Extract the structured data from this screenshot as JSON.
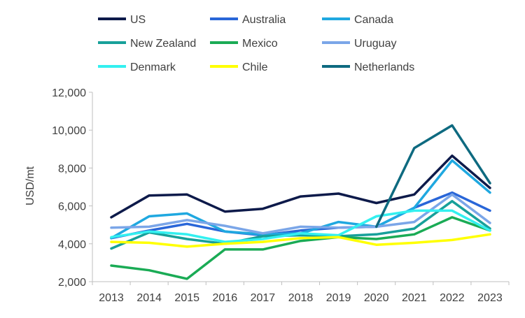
{
  "chart_data": {
    "type": "line",
    "title": "",
    "xlabel": "",
    "ylabel": "USD/mt",
    "ylim": [
      2000,
      12000
    ],
    "yticks": [
      2000,
      4000,
      6000,
      8000,
      10000,
      12000
    ],
    "ytick_labels": [
      "2,000",
      "4,000",
      "6,000",
      "8,000",
      "10,000",
      "12,000"
    ],
    "grid": false,
    "legend_placement": "top",
    "categories": [
      "2013",
      "2014",
      "2015",
      "2016",
      "2017",
      "2018",
      "2019",
      "2020",
      "2021",
      "2022",
      "2023"
    ],
    "series": [
      {
        "name": "US",
        "color": "#0d1a4a",
        "values": [
          5400,
          6550,
          6600,
          5700,
          5850,
          6500,
          6650,
          6150,
          6600,
          8650,
          6950
        ]
      },
      {
        "name": "Australia",
        "color": "#2966d8",
        "values": [
          4300,
          4700,
          5050,
          4650,
          4450,
          4700,
          4850,
          4900,
          5900,
          6700,
          5750
        ]
      },
      {
        "name": "Canada",
        "color": "#1fa8e0",
        "values": [
          4300,
          5450,
          5600,
          4650,
          4500,
          4550,
          5150,
          4900,
          5900,
          8400,
          6700
        ]
      },
      {
        "name": "New Zealand",
        "color": "#17a09a",
        "values": [
          3750,
          4600,
          4250,
          4000,
          4400,
          4450,
          4400,
          4500,
          4800,
          6250,
          4800
        ]
      },
      {
        "name": "Mexico",
        "color": "#1aab55",
        "values": [
          2850,
          2600,
          2150,
          3700,
          3700,
          4150,
          4350,
          4250,
          4500,
          5400,
          4700
        ]
      },
      {
        "name": "Uruguay",
        "color": "#7ba6e8",
        "values": [
          4850,
          4900,
          5250,
          4950,
          4550,
          4900,
          4850,
          4900,
          5150,
          6600,
          5100
        ]
      },
      {
        "name": "Denmark",
        "color": "#33f0f0",
        "values": [
          4350,
          4650,
          4500,
          4100,
          4250,
          4550,
          4450,
          5450,
          5750,
          5750,
          4700
        ]
      },
      {
        "name": "Chile",
        "color": "#ffff00",
        "values": [
          4100,
          4050,
          3850,
          4000,
          4100,
          4300,
          4350,
          3950,
          4050,
          4200,
          4500
        ]
      },
      {
        "name": "Netherlands",
        "color": "#0e6a80",
        "values": [
          null,
          null,
          null,
          null,
          null,
          null,
          null,
          4900,
          9050,
          10250,
          7200
        ]
      }
    ]
  }
}
